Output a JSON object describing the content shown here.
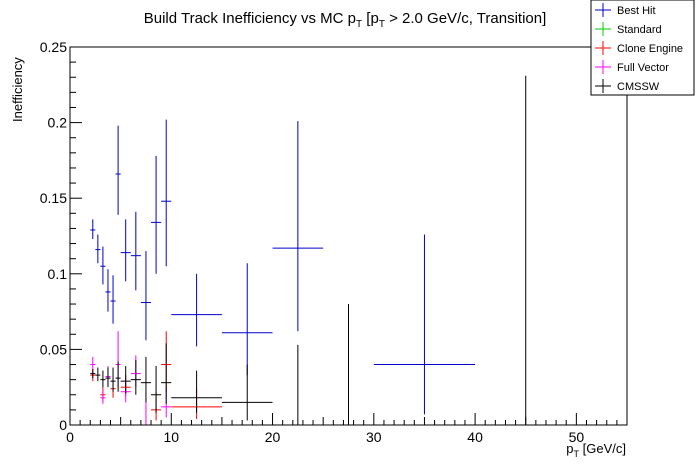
{
  "chart_data": {
    "type": "scatter",
    "title_main": "Build Track Inefficiency vs MC p",
    "title_sub1": "T",
    "title_mid": " [p",
    "title_sub2": "T",
    "title_tail": " > 2.0 GeV/c, Transition]",
    "ylabel": "Inefficiency",
    "xlabel_main": "p",
    "xlabel_sub": "T",
    "xlabel_tail": " [GeV/c]",
    "xlim": [
      0,
      55
    ],
    "ylim": [
      0,
      0.25
    ],
    "x_ticks": [
      "0",
      "10",
      "20",
      "30",
      "40",
      "50"
    ],
    "y_ticks": [
      "0",
      "0.05",
      "0.1",
      "0.15",
      "0.2",
      "0.25"
    ],
    "grid": false,
    "legend_position": "top-right",
    "series": [
      {
        "name": "Best Hit",
        "color": "#0000cc",
        "points": [
          {
            "x": 2.25,
            "xerr": 0.25,
            "y": 0.129,
            "yerr_lo": 0.006,
            "yerr_hi": 0.007
          },
          {
            "x": 2.75,
            "xerr": 0.25,
            "y": 0.116,
            "yerr_lo": 0.009,
            "yerr_hi": 0.01
          },
          {
            "x": 3.25,
            "xerr": 0.25,
            "y": 0.105,
            "yerr_lo": 0.012,
            "yerr_hi": 0.013
          },
          {
            "x": 3.75,
            "xerr": 0.25,
            "y": 0.088,
            "yerr_lo": 0.013,
            "yerr_hi": 0.015
          },
          {
            "x": 4.25,
            "xerr": 0.25,
            "y": 0.082,
            "yerr_lo": 0.015,
            "yerr_hi": 0.017
          },
          {
            "x": 4.75,
            "xerr": 0.25,
            "y": 0.166,
            "yerr_lo": 0.027,
            "yerr_hi": 0.032
          },
          {
            "x": 5.5,
            "xerr": 0.5,
            "y": 0.114,
            "yerr_lo": 0.019,
            "yerr_hi": 0.022
          },
          {
            "x": 6.5,
            "xerr": 0.5,
            "y": 0.112,
            "yerr_lo": 0.023,
            "yerr_hi": 0.029
          },
          {
            "x": 7.5,
            "xerr": 0.5,
            "y": 0.081,
            "yerr_lo": 0.025,
            "yerr_hi": 0.034
          },
          {
            "x": 8.5,
            "xerr": 0.5,
            "y": 0.134,
            "yerr_lo": 0.034,
            "yerr_hi": 0.044
          },
          {
            "x": 9.5,
            "xerr": 0.5,
            "y": 0.148,
            "yerr_lo": 0.043,
            "yerr_hi": 0.054
          },
          {
            "x": 12.5,
            "xerr": 2.5,
            "y": 0.073,
            "yerr_lo": 0.021,
            "yerr_hi": 0.027
          },
          {
            "x": 17.5,
            "xerr": 2.5,
            "y": 0.061,
            "yerr_lo": 0.028,
            "yerr_hi": 0.046
          },
          {
            "x": 22.5,
            "xerr": 2.5,
            "y": 0.117,
            "yerr_lo": 0.055,
            "yerr_hi": 0.084
          },
          {
            "x": 35,
            "xerr": 5,
            "y": 0.04,
            "yerr_lo": 0.033,
            "yerr_hi": 0.086
          }
        ]
      },
      {
        "name": "Standard",
        "color": "#00cc00",
        "points": []
      },
      {
        "name": "Clone Engine",
        "color": "#ff0000",
        "points": [
          {
            "x": 2.25,
            "xerr": 0.25,
            "y": 0.033,
            "yerr_lo": 0.004,
            "yerr_hi": 0.004
          },
          {
            "x": 3.25,
            "xerr": 0.25,
            "y": 0.02,
            "yerr_lo": 0.004,
            "yerr_hi": 0.005
          },
          {
            "x": 4.25,
            "xerr": 0.25,
            "y": 0.024,
            "yerr_lo": 0.006,
            "yerr_hi": 0.007
          },
          {
            "x": 5.5,
            "xerr": 0.5,
            "y": 0.025,
            "yerr_lo": 0.006,
            "yerr_hi": 0.008
          },
          {
            "x": 8.5,
            "xerr": 0.5,
            "y": 0.01,
            "yerr_lo": 0.007,
            "yerr_hi": 0.012
          },
          {
            "x": 9.5,
            "xerr": 0.5,
            "y": 0.04,
            "yerr_lo": 0.018,
            "yerr_hi": 0.022
          },
          {
            "x": 12.5,
            "xerr": 2.5,
            "y": 0.012,
            "yerr_lo": 0.008,
            "yerr_hi": 0.012
          }
        ]
      },
      {
        "name": "Full Vector",
        "color": "#ff00ff",
        "points": [
          {
            "x": 2.25,
            "xerr": 0.25,
            "y": 0.04,
            "yerr_lo": 0.004,
            "yerr_hi": 0.005
          },
          {
            "x": 3.25,
            "xerr": 0.25,
            "y": 0.018,
            "yerr_lo": 0.004,
            "yerr_hi": 0.005
          },
          {
            "x": 3.75,
            "xerr": 0.25,
            "y": 0.032,
            "yerr_lo": 0.006,
            "yerr_hi": 0.007
          },
          {
            "x": 4.75,
            "xerr": 0.25,
            "y": 0.04,
            "yerr_lo": 0.015,
            "yerr_hi": 0.022
          },
          {
            "x": 5.5,
            "xerr": 0.5,
            "y": 0.022,
            "yerr_lo": 0.007,
            "yerr_hi": 0.008
          },
          {
            "x": 6.5,
            "xerr": 0.5,
            "y": 0.034,
            "yerr_lo": 0.009,
            "yerr_hi": 0.012
          },
          {
            "x": 7.5,
            "xerr": 0.5,
            "y": 0.0,
            "yerr_lo": 0.0,
            "yerr_hi": 0.018
          },
          {
            "x": 9.5,
            "xerr": 0.5,
            "y": 0.012,
            "yerr_lo": 0.007,
            "yerr_hi": 0.013
          },
          {
            "x": 17.5,
            "xerr": 2.5,
            "y": 0.0,
            "yerr_lo": 0.0,
            "yerr_hi": 0.0
          }
        ]
      },
      {
        "name": "CMSSW",
        "color": "#000000",
        "points": [
          {
            "x": 2.25,
            "xerr": 0.25,
            "y": 0.034,
            "yerr_lo": 0.003,
            "yerr_hi": 0.003
          },
          {
            "x": 2.75,
            "xerr": 0.25,
            "y": 0.033,
            "yerr_lo": 0.004,
            "yerr_hi": 0.005
          },
          {
            "x": 3.25,
            "xerr": 0.25,
            "y": 0.03,
            "yerr_lo": 0.005,
            "yerr_hi": 0.006
          },
          {
            "x": 3.75,
            "xerr": 0.25,
            "y": 0.031,
            "yerr_lo": 0.006,
            "yerr_hi": 0.007
          },
          {
            "x": 4.25,
            "xerr": 0.25,
            "y": 0.029,
            "yerr_lo": 0.007,
            "yerr_hi": 0.009
          },
          {
            "x": 4.75,
            "xerr": 0.25,
            "y": 0.031,
            "yerr_lo": 0.009,
            "yerr_hi": 0.011
          },
          {
            "x": 5.5,
            "xerr": 0.5,
            "y": 0.029,
            "yerr_lo": 0.008,
            "yerr_hi": 0.01
          },
          {
            "x": 6.5,
            "xerr": 0.5,
            "y": 0.03,
            "yerr_lo": 0.01,
            "yerr_hi": 0.013
          },
          {
            "x": 7.5,
            "xerr": 0.5,
            "y": 0.028,
            "yerr_lo": 0.013,
            "yerr_hi": 0.017
          },
          {
            "x": 8.5,
            "xerr": 0.5,
            "y": 0.02,
            "yerr_lo": 0.012,
            "yerr_hi": 0.019
          },
          {
            "x": 9.5,
            "xerr": 0.5,
            "y": 0.028,
            "yerr_lo": 0.014,
            "yerr_hi": 0.026
          },
          {
            "x": 12.5,
            "xerr": 2.5,
            "y": 0.018,
            "yerr_lo": 0.01,
            "yerr_hi": 0.018
          },
          {
            "x": 17.5,
            "xerr": 2.5,
            "y": 0.015,
            "yerr_lo": 0.012,
            "yerr_hi": 0.025
          },
          {
            "x": 22.5,
            "xerr": 2.5,
            "y": 0.0,
            "yerr_lo": 0.0,
            "yerr_hi": 0.053
          },
          {
            "x": 27.5,
            "xerr": 2.5,
            "y": 0.0,
            "yerr_lo": 0.0,
            "yerr_hi": 0.08
          },
          {
            "x": 35,
            "xerr": 5,
            "y": 0.0,
            "yerr_lo": 0.0,
            "yerr_hi": 0.0
          },
          {
            "x": 45,
            "xerr": 5,
            "y": 0.0,
            "yerr_lo": 0.0,
            "yerr_hi": 0.231
          }
        ]
      }
    ]
  }
}
